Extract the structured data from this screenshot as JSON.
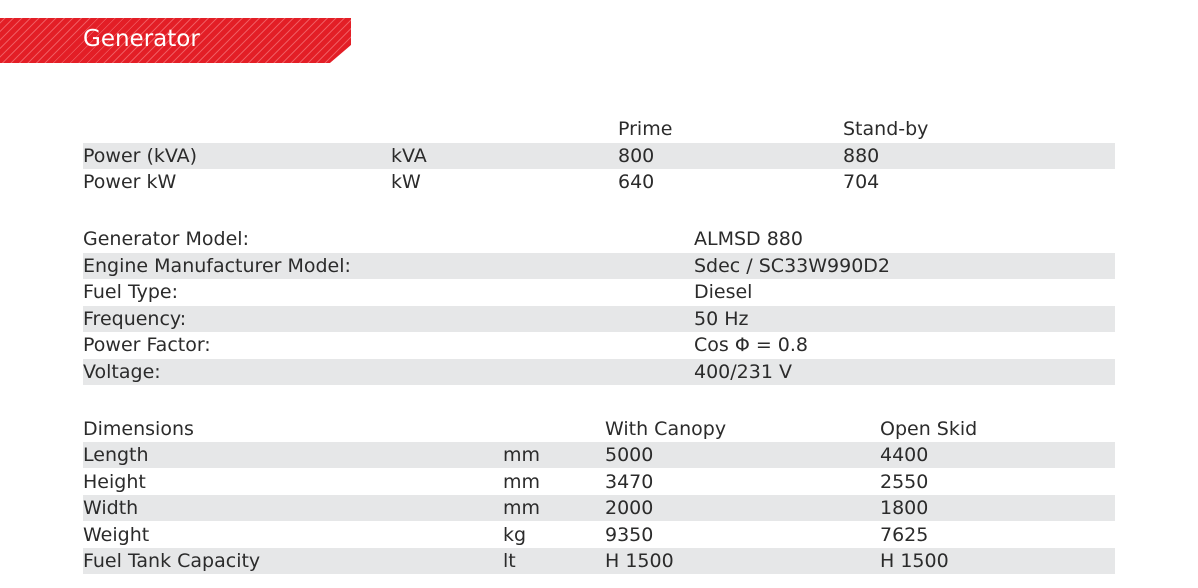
{
  "banner": {
    "title": "Generator",
    "color": "#e31e26"
  },
  "power": {
    "headers": [
      "",
      "",
      "Prime",
      "Stand-by"
    ],
    "rows": [
      {
        "label": "Power (kVA)",
        "unit": "kVA",
        "prime": "800",
        "standby": "880"
      },
      {
        "label": "Power kW",
        "unit": "kW",
        "prime": "640",
        "standby": "704"
      }
    ]
  },
  "specs": [
    {
      "label": "Generator Model:",
      "value": "ALMSD 880"
    },
    {
      "label": "Engine Manufacturer Model:",
      "value": "Sdec / SC33W990D2"
    },
    {
      "label": "Fuel Type:",
      "value": "Diesel"
    },
    {
      "label": "Frequency:",
      "value": "50 Hz"
    },
    {
      "label": "Power Factor:",
      "value": "Cos Φ = 0.8"
    },
    {
      "label": "Voltage:",
      "value": "400/231 V"
    }
  ],
  "dimensions": {
    "headers": [
      "Dimensions",
      "",
      "With Canopy",
      "Open Skid"
    ],
    "rows": [
      {
        "label": "Length",
        "unit": "mm",
        "canopy": "5000",
        "skid": "4400"
      },
      {
        "label": "Height",
        "unit": "mm",
        "canopy": "3470",
        "skid": "2550"
      },
      {
        "label": "Width",
        "unit": "mm",
        "canopy": "2000",
        "skid": "1800"
      },
      {
        "label": "Weight",
        "unit": "kg",
        "canopy": "9350",
        "skid": "7625"
      },
      {
        "label": "Fuel Tank Capacity",
        "unit": "lt",
        "canopy": "H 1500",
        "skid": "H 1500"
      }
    ]
  }
}
